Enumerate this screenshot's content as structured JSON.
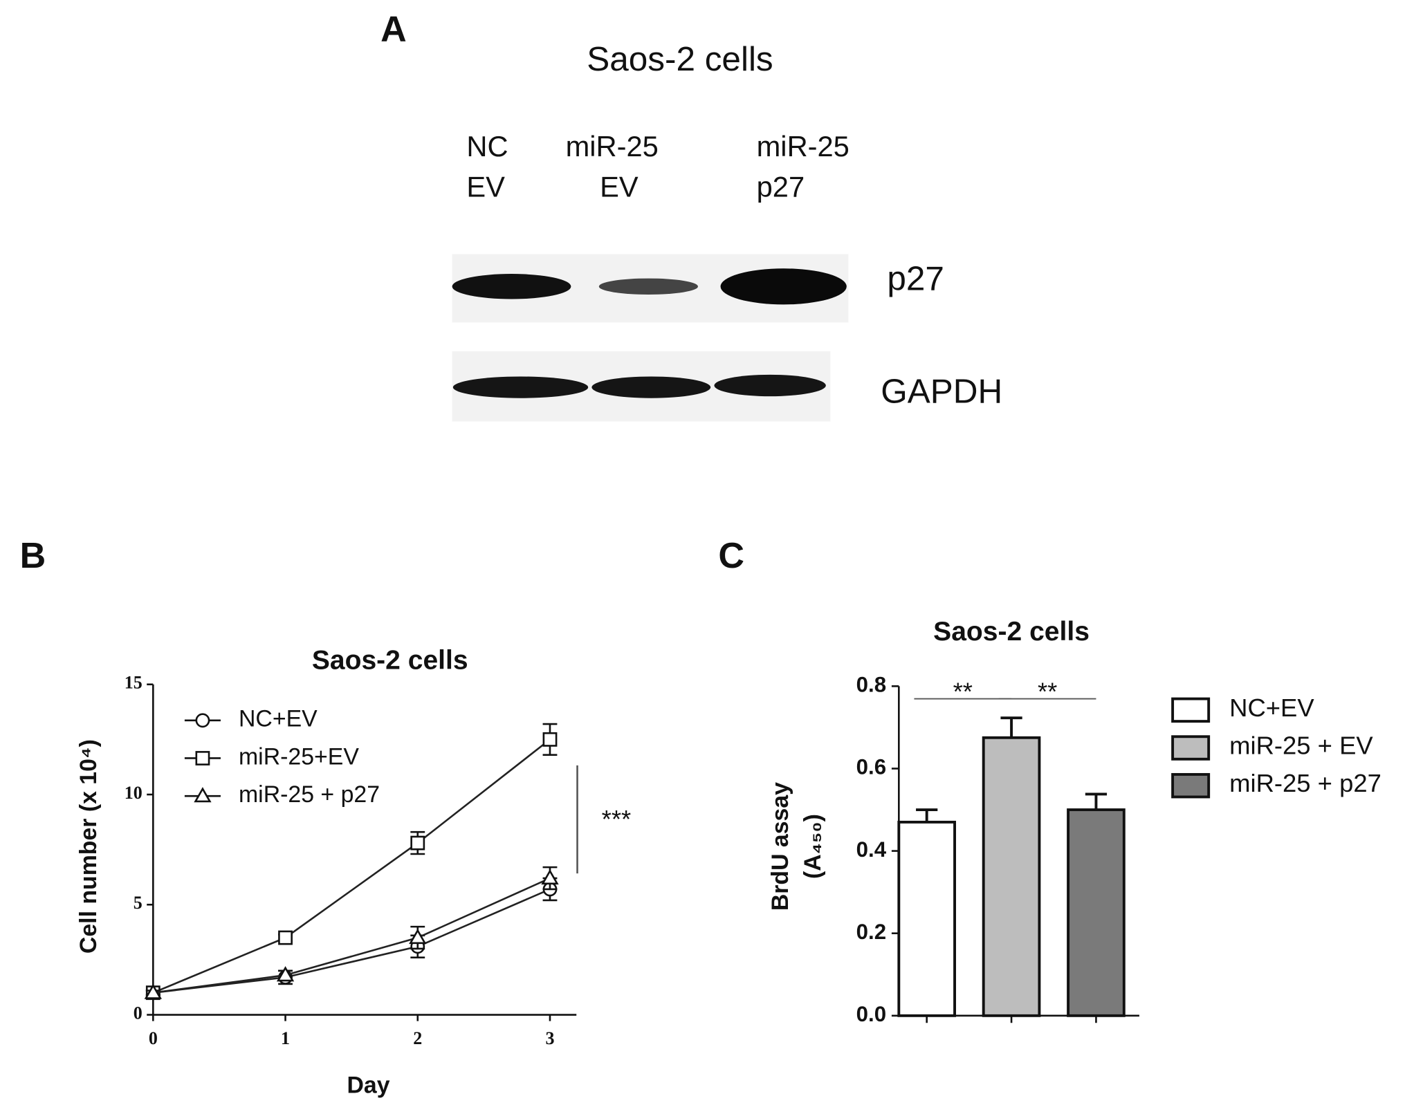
{
  "panel_a": {
    "label": "A",
    "title": "Saos-2 cells",
    "lanes": [
      [
        "NC",
        "EV"
      ],
      [
        "miR-25",
        "EV"
      ],
      [
        "miR-25",
        "p27"
      ]
    ],
    "bands": [
      "p27",
      "GAPDH"
    ]
  },
  "chart_data": [
    {
      "type": "line",
      "label": "B",
      "title": "Saos-2 cells",
      "xlabel": "Day",
      "ylabel": "Cell number (x 10⁴)",
      "x": [
        0,
        1,
        2,
        3
      ],
      "xlim": [
        0,
        3.2
      ],
      "xticks": [
        0,
        1,
        2,
        3
      ],
      "ylim": [
        0,
        15
      ],
      "yticks": [
        0,
        5,
        10,
        15
      ],
      "series": [
        {
          "name": "NC+EV",
          "marker": "circle",
          "color": "#222222",
          "values": [
            1.0,
            1.7,
            3.1,
            5.7
          ],
          "errors": [
            0.1,
            0.3,
            0.5,
            0.5
          ]
        },
        {
          "name": "miR-25+EV",
          "marker": "square",
          "color": "#222222",
          "values": [
            1.0,
            3.5,
            7.8,
            12.5
          ],
          "errors": [
            0.1,
            0.15,
            0.5,
            0.7
          ]
        },
        {
          "name": "miR-25 + p27",
          "marker": "triangle",
          "color": "#222222",
          "values": [
            1.0,
            1.8,
            3.5,
            6.2
          ],
          "errors": [
            0.1,
            0.2,
            0.5,
            0.5
          ]
        }
      ],
      "annotation": "***"
    },
    {
      "type": "bar",
      "label": "C",
      "title": "Saos-2 cells",
      "ylabel": [
        "BrdU assay",
        "(A₄₅₀)"
      ],
      "categories": [
        null,
        null,
        null
      ],
      "legend": [
        "NC+EV",
        "miR-25 + EV",
        "miR-25 + p27"
      ],
      "colors": [
        "#ffffff",
        "#bdbdbd",
        "#7a7a7a"
      ],
      "values": [
        0.47,
        0.675,
        0.5
      ],
      "errors": [
        0.03,
        0.048,
        0.038
      ],
      "ylim": [
        0,
        0.8
      ],
      "yticks": [
        {
          "value": 0,
          "label": "0.0"
        },
        0.2,
        0.4,
        0.6,
        0.8
      ],
      "significance": [
        "**",
        "**"
      ]
    }
  ]
}
